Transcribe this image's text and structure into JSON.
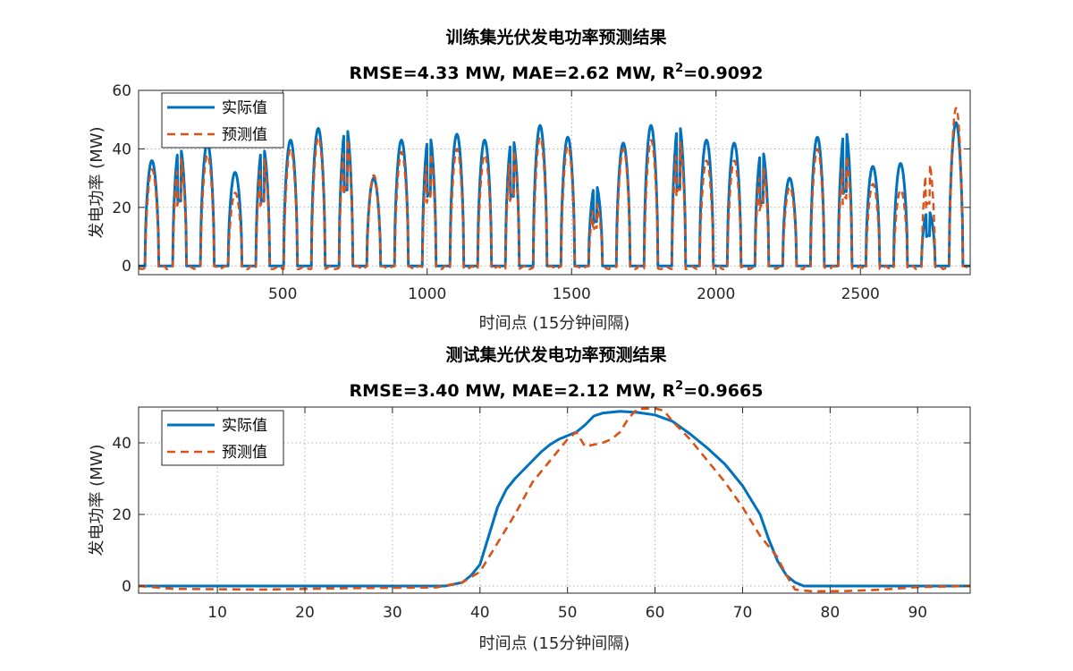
{
  "chart_data": [
    {
      "type": "line",
      "title": "训练集光伏发电功率预测结果",
      "subtitle": {
        "rmse": "RMSE=4.33 MW",
        "mae": "MAE=2.62 MW",
        "r2_label": "R",
        "r2_sup": "2",
        "r2_value": "=0.9092"
      },
      "xlabel": "时间点 (15分钟间隔)",
      "ylabel": "发电功率 (MW)",
      "xlim": [
        1,
        2880
      ],
      "ylim": [
        -3,
        60
      ],
      "xticks": [
        500,
        1000,
        1500,
        2000,
        2500
      ],
      "yticks": [
        0,
        20,
        40,
        60
      ],
      "grid": true,
      "legend_position": "top-left",
      "series": [
        {
          "name": "实际值",
          "color": "#0072BD",
          "style": "solid"
        },
        {
          "name": "预测值",
          "color": "#D95319",
          "style": "dashed"
        }
      ],
      "day_peaks": [
        {
          "actual": 36,
          "pred": 33
        },
        {
          "actual": 41,
          "pred": 38
        },
        {
          "actual": 42,
          "pred": 38
        },
        {
          "actual": 32,
          "pred": 25
        },
        {
          "actual": 41,
          "pred": 38
        },
        {
          "actual": 43,
          "pred": 40
        },
        {
          "actual": 47,
          "pred": 44
        },
        {
          "actual": 48,
          "pred": 45
        },
        {
          "actual": 30,
          "pred": 31
        },
        {
          "actual": 43,
          "pred": 39
        },
        {
          "actual": 45,
          "pred": 40
        },
        {
          "actual": 45,
          "pred": 40
        },
        {
          "actual": 43,
          "pred": 38
        },
        {
          "actual": 44,
          "pred": 41
        },
        {
          "actual": 48,
          "pred": 44
        },
        {
          "actual": 44,
          "pred": 41
        },
        {
          "actual": 28,
          "pred": 22
        },
        {
          "actual": 42,
          "pred": 40
        },
        {
          "actual": 48,
          "pred": 43
        },
        {
          "actual": 49,
          "pred": 44
        },
        {
          "actual": 43,
          "pred": 36
        },
        {
          "actual": 42,
          "pred": 36
        },
        {
          "actual": 40,
          "pred": 35
        },
        {
          "actual": 30,
          "pred": 27
        },
        {
          "actual": 44,
          "pred": 40
        },
        {
          "actual": 47,
          "pred": 39
        },
        {
          "actual": 34,
          "pred": 28
        },
        {
          "actual": 35,
          "pred": 26
        },
        {
          "actual": 19,
          "pred": 36
        },
        {
          "actual": 49,
          "pred": 54
        }
      ]
    },
    {
      "type": "line",
      "title": "测试集光伏发电功率预测结果",
      "subtitle": {
        "rmse": "RMSE=3.40 MW",
        "mae": "MAE=2.12 MW",
        "r2_label": "R",
        "r2_sup": "2",
        "r2_value": "=0.9665"
      },
      "xlabel": "时间点 (15分钟间隔)",
      "ylabel": "发电功率 (MW)",
      "xlim": [
        1,
        96
      ],
      "ylim": [
        -2,
        50
      ],
      "xticks": [
        10,
        20,
        30,
        40,
        50,
        60,
        70,
        80,
        90
      ],
      "yticks": [
        0,
        20,
        40
      ],
      "grid": true,
      "legend_position": "top-left",
      "series": [
        {
          "name": "实际值",
          "color": "#0072BD",
          "style": "solid",
          "points": [
            [
              1,
              0
            ],
            [
              36,
              0
            ],
            [
              38,
              1
            ],
            [
              39,
              3
            ],
            [
              40,
              6
            ],
            [
              41,
              14
            ],
            [
              42,
              22
            ],
            [
              43,
              27
            ],
            [
              44,
              30
            ],
            [
              45,
              32.5
            ],
            [
              46,
              35
            ],
            [
              47,
              37.5
            ],
            [
              48,
              39.5
            ],
            [
              49,
              41
            ],
            [
              50,
              42
            ],
            [
              51,
              43
            ],
            [
              52,
              45
            ],
            [
              53,
              47.5
            ],
            [
              54,
              48.3
            ],
            [
              56,
              48.8
            ],
            [
              58,
              48.5
            ],
            [
              60,
              47.8
            ],
            [
              62,
              46
            ],
            [
              64,
              42.5
            ],
            [
              66,
              38.5
            ],
            [
              68,
              34
            ],
            [
              70,
              28
            ],
            [
              72,
              20
            ],
            [
              73,
              13
            ],
            [
              74,
              7
            ],
            [
              75,
              3
            ],
            [
              76,
              1
            ],
            [
              77,
              0
            ],
            [
              96,
              0
            ]
          ]
        },
        {
          "name": "预测值",
          "color": "#D95319",
          "style": "dashed",
          "points": [
            [
              1,
              0
            ],
            [
              5,
              -0.8
            ],
            [
              15,
              -1
            ],
            [
              25,
              -0.6
            ],
            [
              35,
              -0.4
            ],
            [
              38,
              1
            ],
            [
              40,
              4
            ],
            [
              42,
              12
            ],
            [
              44,
              20
            ],
            [
              46,
              29
            ],
            [
              48,
              35
            ],
            [
              50,
              41
            ],
            [
              51,
              43
            ],
            [
              52,
              39
            ],
            [
              54,
              40
            ],
            [
              55,
              41
            ],
            [
              56,
              43
            ],
            [
              57,
              47
            ],
            [
              58,
              49.5
            ],
            [
              60,
              49.6
            ],
            [
              61,
              49
            ],
            [
              62,
              46
            ],
            [
              64,
              41
            ],
            [
              66,
              35
            ],
            [
              68,
              29
            ],
            [
              70,
              22
            ],
            [
              72,
              14
            ],
            [
              74,
              8
            ],
            [
              75,
              3
            ],
            [
              76,
              -1
            ],
            [
              78,
              -1.5
            ],
            [
              82,
              -1.4
            ],
            [
              86,
              -1
            ],
            [
              90,
              -0.3
            ],
            [
              96,
              0
            ]
          ]
        }
      ]
    }
  ]
}
